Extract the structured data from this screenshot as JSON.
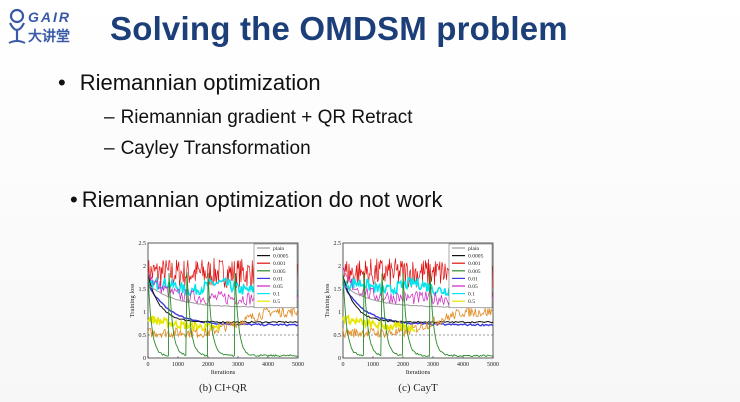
{
  "logo": {
    "top_text": "GAIR",
    "bottom_text": "大讲堂",
    "icon": "microphone-person-icon"
  },
  "slide": {
    "title": "Solving the OMDSM problem",
    "bullets": [
      {
        "marker": "•",
        "text": "Riemannian optimization",
        "subs": [
          {
            "marker": "–",
            "text": "Riemannian gradient + QR Retract"
          },
          {
            "marker": "–",
            "text": "Cayley Transformation"
          }
        ]
      },
      {
        "marker": "•",
        "text": "Riemannian optimization do not work"
      }
    ]
  },
  "colors": {
    "title": "#1c3f7a",
    "logo": "#3a5aa8"
  },
  "chart_data": [
    {
      "type": "line",
      "caption": "(b) CI+QR",
      "xlabel": "Iterations",
      "ylabel": "Training loss",
      "xlim": [
        0,
        5000
      ],
      "ylim": [
        0,
        2.5
      ],
      "x_ticks": [
        "0",
        "1000",
        "2000",
        "3000",
        "4000",
        "5000"
      ],
      "y_ticks": [
        "0",
        "0.5",
        "1",
        "1.5",
        "2",
        "2.5"
      ],
      "legend_position": "top-right",
      "series": [
        {
          "name": "plain",
          "color": "#9a9a9a"
        },
        {
          "name": "0.0005",
          "color": "#111111"
        },
        {
          "name": "0.001",
          "color": "#e01010"
        },
        {
          "name": "0.005",
          "color": "#2a8a2a"
        },
        {
          "name": "0.01",
          "color": "#3a3adf"
        },
        {
          "name": "0.05",
          "color": "#d020c0"
        },
        {
          "name": "0.1",
          "color": "#00e5ee"
        },
        {
          "name": "0.5",
          "color": "#e6e600"
        }
      ]
    },
    {
      "type": "line",
      "caption": "(c) CayT",
      "xlabel": "Iterations",
      "ylabel": "Training loss",
      "xlim": [
        0,
        5000
      ],
      "ylim": [
        0,
        2.5
      ],
      "x_ticks": [
        "0",
        "1000",
        "2000",
        "3000",
        "4000",
        "5000"
      ],
      "y_ticks": [
        "0",
        "0.5",
        "1",
        "1.5",
        "2",
        "2.5"
      ],
      "legend_position": "top-right",
      "series": [
        {
          "name": "plain",
          "color": "#9a9a9a"
        },
        {
          "name": "0.0005",
          "color": "#111111"
        },
        {
          "name": "0.001",
          "color": "#e01010"
        },
        {
          "name": "0.005",
          "color": "#2a8a2a"
        },
        {
          "name": "0.01",
          "color": "#3a3adf"
        },
        {
          "name": "0.05",
          "color": "#d020c0"
        },
        {
          "name": "0.1",
          "color": "#00e5ee"
        },
        {
          "name": "0.5",
          "color": "#e6e600"
        }
      ]
    }
  ]
}
